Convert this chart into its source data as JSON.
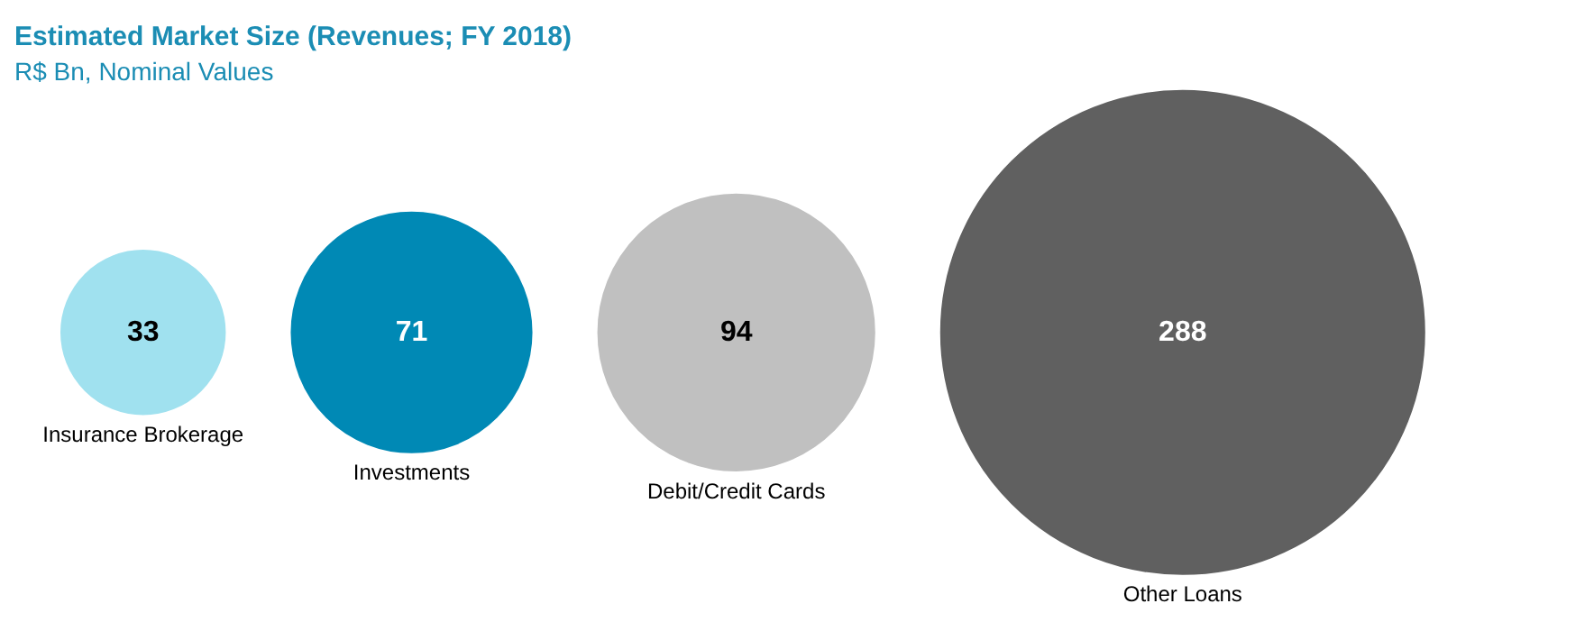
{
  "chart_data": {
    "type": "other",
    "title": "Estimated Market Size (Revenues; FY 2018)",
    "subtitle": "R$ Bn, Nominal Values",
    "categories": [
      "Insurance Brokerage",
      "Investments",
      "Debit/Credit Cards",
      "Other Loans"
    ],
    "values": [
      33,
      71,
      94,
      288
    ],
    "colors": [
      "#a0e1ef",
      "#0089b5",
      "#c0c0c0",
      "#606060"
    ],
    "data_labels": true
  }
}
